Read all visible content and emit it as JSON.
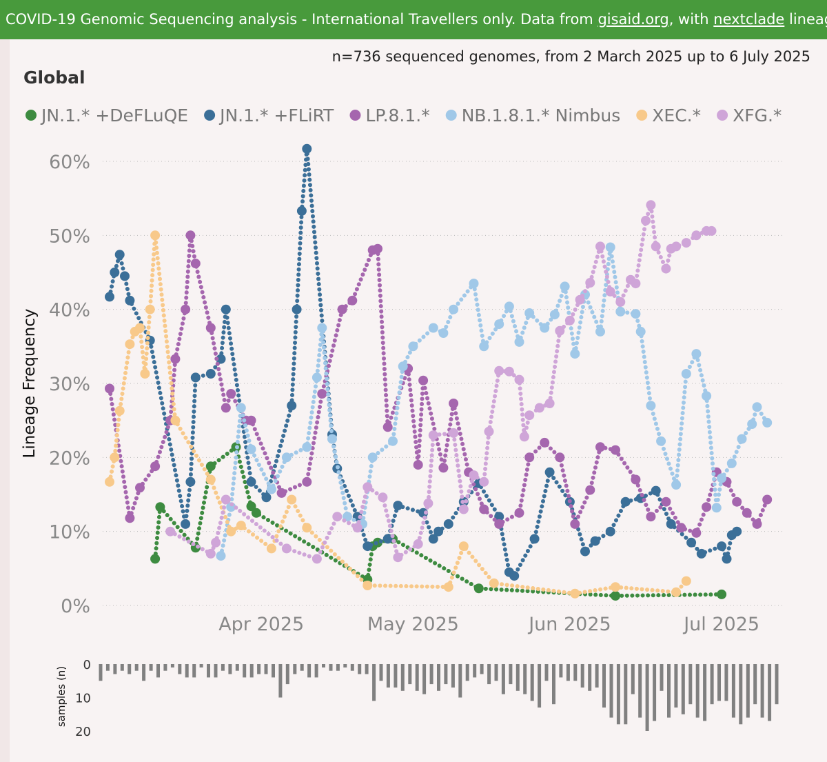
{
  "banner": {
    "prefix": "COVID-19 Genomic Sequencing analysis - International Travellers only. Data from ",
    "link1": "gisaid.org",
    "middle": ", with ",
    "link2": "nextclade",
    "suffix": " lineag"
  },
  "subtitle": "n=736 sequenced genomes, from 2 March 2025 up to 6 July 2025",
  "panel_title": "Global",
  "chart_data": {
    "type": "line",
    "ylabel": "Lineage Frequency",
    "ylim": [
      0,
      60
    ],
    "y_ticks": [
      "0%",
      "10%",
      "20%",
      "30%",
      "40%",
      "50%",
      "60%"
    ],
    "x_range": [
      "2025-03-02",
      "2025-07-06"
    ],
    "x_ticks": [
      {
        "date": "2025-04-01",
        "label": "Apr 2025"
      },
      {
        "date": "2025-05-01",
        "label": "May 2025"
      },
      {
        "date": "2025-06-01",
        "label": "Jun 2025"
      },
      {
        "date": "2025-07-01",
        "label": "Jul 2025"
      }
    ],
    "grid": "horizontal dotted",
    "legend_position": "top",
    "series": [
      {
        "name": "JN.1.* +DeFLuQE",
        "color": "#3d8b40",
        "points": [
          [
            "2025-03-11",
            6.3
          ],
          [
            "2025-03-12",
            13.3
          ],
          [
            "2025-03-19",
            7.8
          ],
          [
            "2025-03-22",
            18.8
          ],
          [
            "2025-03-27",
            21.4
          ],
          [
            "2025-03-30",
            13.4
          ],
          [
            "2025-03-31",
            12.5
          ],
          [
            "2025-04-22",
            3.5
          ],
          [
            "2025-04-23",
            8.0
          ],
          [
            "2025-04-24",
            8.5
          ],
          [
            "2025-04-27",
            9.0
          ],
          [
            "2025-05-14",
            2.3
          ],
          [
            "2025-06-10",
            1.3
          ],
          [
            "2025-07-01",
            1.5
          ]
        ]
      },
      {
        "name": "JN.1.* +FLiRT",
        "color": "#3b6f98",
        "points": [
          [
            "2025-03-02",
            41.7
          ],
          [
            "2025-03-03",
            45.0
          ],
          [
            "2025-03-04",
            47.4
          ],
          [
            "2025-03-05",
            44.5
          ],
          [
            "2025-03-06",
            41.2
          ],
          [
            "2025-03-10",
            35.8
          ],
          [
            "2025-03-17",
            11.0
          ],
          [
            "2025-03-18",
            16.7
          ],
          [
            "2025-03-19",
            30.8
          ],
          [
            "2025-03-22",
            31.3
          ],
          [
            "2025-03-24",
            33.3
          ],
          [
            "2025-03-25",
            40.0
          ],
          [
            "2025-03-30",
            16.7
          ],
          [
            "2025-04-02",
            14.6
          ],
          [
            "2025-04-07",
            27.0
          ],
          [
            "2025-04-08",
            40.0
          ],
          [
            "2025-04-09",
            53.3
          ],
          [
            "2025-04-10",
            61.7
          ],
          [
            "2025-04-15",
            23.1
          ],
          [
            "2025-04-16",
            18.5
          ],
          [
            "2025-04-20",
            12.0
          ],
          [
            "2025-04-22",
            8.0
          ],
          [
            "2025-04-26",
            9.0
          ],
          [
            "2025-04-28",
            13.5
          ],
          [
            "2025-05-03",
            12.5
          ],
          [
            "2025-05-05",
            9.0
          ],
          [
            "2025-05-06",
            10.0
          ],
          [
            "2025-05-08",
            11.0
          ],
          [
            "2025-05-11",
            14.0
          ],
          [
            "2025-05-14",
            16.5
          ],
          [
            "2025-05-18",
            12.0
          ],
          [
            "2025-05-20",
            4.5
          ],
          [
            "2025-05-21",
            4.0
          ],
          [
            "2025-05-25",
            9.0
          ],
          [
            "2025-05-28",
            18.0
          ],
          [
            "2025-06-01",
            14.0
          ],
          [
            "2025-06-04",
            7.3
          ],
          [
            "2025-06-06",
            8.7
          ],
          [
            "2025-06-09",
            10.0
          ],
          [
            "2025-06-12",
            14.0
          ],
          [
            "2025-06-15",
            14.5
          ],
          [
            "2025-06-18",
            15.5
          ],
          [
            "2025-06-21",
            11.0
          ],
          [
            "2025-06-25",
            8.5
          ],
          [
            "2025-06-27",
            7.0
          ],
          [
            "2025-07-01",
            8.0
          ],
          [
            "2025-07-02",
            6.3
          ],
          [
            "2025-07-03",
            9.5
          ],
          [
            "2025-07-04",
            10.0
          ]
        ]
      },
      {
        "name": "LP.8.1.*",
        "color": "#a566ae",
        "points": [
          [
            "2025-03-02",
            29.3
          ],
          [
            "2025-03-06",
            11.8
          ],
          [
            "2025-03-08",
            15.9
          ],
          [
            "2025-03-11",
            18.8
          ],
          [
            "2025-03-14",
            25.0
          ],
          [
            "2025-03-15",
            33.3
          ],
          [
            "2025-03-17",
            40.0
          ],
          [
            "2025-03-18",
            50.0
          ],
          [
            "2025-03-19",
            46.2
          ],
          [
            "2025-03-22",
            37.5
          ],
          [
            "2025-03-25",
            26.7
          ],
          [
            "2025-03-26",
            28.6
          ],
          [
            "2025-03-29",
            25.0
          ],
          [
            "2025-03-30",
            25.0
          ],
          [
            "2025-04-05",
            15.2
          ],
          [
            "2025-04-10",
            16.7
          ],
          [
            "2025-04-13",
            28.6
          ],
          [
            "2025-04-17",
            40.0
          ],
          [
            "2025-04-19",
            41.2
          ],
          [
            "2025-04-23",
            48.0
          ],
          [
            "2025-04-24",
            48.2
          ],
          [
            "2025-04-26",
            24.1
          ],
          [
            "2025-04-30",
            32.0
          ],
          [
            "2025-05-02",
            19.0
          ],
          [
            "2025-05-03",
            30.4
          ],
          [
            "2025-05-07",
            18.6
          ],
          [
            "2025-05-09",
            27.3
          ],
          [
            "2025-05-12",
            18.0
          ],
          [
            "2025-05-15",
            13.0
          ],
          [
            "2025-05-18",
            11.0
          ],
          [
            "2025-05-22",
            12.5
          ],
          [
            "2025-05-24",
            20.0
          ],
          [
            "2025-05-27",
            22.0
          ],
          [
            "2025-05-30",
            20.0
          ],
          [
            "2025-06-02",
            11.0
          ],
          [
            "2025-06-05",
            15.6
          ],
          [
            "2025-06-07",
            21.4
          ],
          [
            "2025-06-10",
            21.0
          ],
          [
            "2025-06-14",
            17.0
          ],
          [
            "2025-06-17",
            12.0
          ],
          [
            "2025-06-20",
            14.0
          ],
          [
            "2025-06-23",
            10.5
          ],
          [
            "2025-06-26",
            9.8
          ],
          [
            "2025-06-28",
            13.3
          ],
          [
            "2025-06-30",
            18.0
          ],
          [
            "2025-07-02",
            16.7
          ],
          [
            "2025-07-04",
            14.0
          ],
          [
            "2025-07-06",
            12.5
          ],
          [
            "2025-07-08",
            11.0
          ],
          [
            "2025-07-10",
            14.3
          ]
        ]
      },
      {
        "name": "NB.1.8.1.* Nimbus",
        "color": "#a0c8e8",
        "points": [
          [
            "2025-03-24",
            6.7
          ],
          [
            "2025-03-26",
            13.3
          ],
          [
            "2025-03-28",
            26.7
          ],
          [
            "2025-03-30",
            21.1
          ],
          [
            "2025-04-03",
            15.7
          ],
          [
            "2025-04-06",
            20.0
          ],
          [
            "2025-04-10",
            21.4
          ],
          [
            "2025-04-12",
            30.8
          ],
          [
            "2025-04-13",
            37.5
          ],
          [
            "2025-04-15",
            22.5
          ],
          [
            "2025-04-18",
            12.0
          ],
          [
            "2025-04-21",
            11.0
          ],
          [
            "2025-04-23",
            20.0
          ],
          [
            "2025-04-27",
            22.2
          ],
          [
            "2025-04-29",
            32.3
          ],
          [
            "2025-05-01",
            35.0
          ],
          [
            "2025-05-05",
            37.5
          ],
          [
            "2025-05-07",
            36.8
          ],
          [
            "2025-05-09",
            40.0
          ],
          [
            "2025-05-13",
            43.5
          ],
          [
            "2025-05-15",
            35.0
          ],
          [
            "2025-05-18",
            38.0
          ],
          [
            "2025-05-20",
            40.4
          ],
          [
            "2025-05-22",
            35.6
          ],
          [
            "2025-05-24",
            39.5
          ],
          [
            "2025-05-27",
            37.5
          ],
          [
            "2025-05-29",
            39.3
          ],
          [
            "2025-05-31",
            43.1
          ],
          [
            "2025-06-02",
            34.0
          ],
          [
            "2025-06-04",
            42.0
          ],
          [
            "2025-06-07",
            37.0
          ],
          [
            "2025-06-09",
            48.4
          ],
          [
            "2025-06-11",
            39.7
          ],
          [
            "2025-06-14",
            39.4
          ],
          [
            "2025-06-15",
            37.0
          ],
          [
            "2025-06-17",
            27.0
          ],
          [
            "2025-06-19",
            22.2
          ],
          [
            "2025-06-22",
            16.3
          ],
          [
            "2025-06-24",
            31.3
          ],
          [
            "2025-06-26",
            34.0
          ],
          [
            "2025-06-28",
            28.3
          ],
          [
            "2025-06-30",
            13.2
          ],
          [
            "2025-07-01",
            17.2
          ],
          [
            "2025-07-03",
            19.2
          ],
          [
            "2025-07-05",
            22.5
          ],
          [
            "2025-07-07",
            24.5
          ],
          [
            "2025-07-08",
            26.8
          ],
          [
            "2025-07-10",
            24.7
          ]
        ]
      },
      {
        "name": "XEC.*",
        "color": "#f8c98a",
        "points": [
          [
            "2025-03-02",
            16.7
          ],
          [
            "2025-03-03",
            20.0
          ],
          [
            "2025-03-04",
            26.3
          ],
          [
            "2025-03-06",
            35.3
          ],
          [
            "2025-03-07",
            37.0
          ],
          [
            "2025-03-08",
            37.5
          ],
          [
            "2025-03-09",
            31.3
          ],
          [
            "2025-03-10",
            40.0
          ],
          [
            "2025-03-11",
            50.0
          ],
          [
            "2025-03-15",
            25.0
          ],
          [
            "2025-03-22",
            17.0
          ],
          [
            "2025-03-26",
            10.0
          ],
          [
            "2025-03-28",
            10.8
          ],
          [
            "2025-04-03",
            7.7
          ],
          [
            "2025-04-07",
            14.3
          ],
          [
            "2025-04-10",
            10.5
          ],
          [
            "2025-04-22",
            2.7
          ],
          [
            "2025-05-08",
            2.5
          ],
          [
            "2025-05-11",
            8.0
          ],
          [
            "2025-05-17",
            3.0
          ],
          [
            "2025-06-02",
            1.6
          ],
          [
            "2025-06-10",
            2.5
          ],
          [
            "2025-06-22",
            1.8
          ],
          [
            "2025-06-24",
            3.3
          ]
        ]
      },
      {
        "name": "XFG.*",
        "color": "#cfa5d8",
        "points": [
          [
            "2025-03-14",
            10.0
          ],
          [
            "2025-03-22",
            7.0
          ],
          [
            "2025-03-23",
            8.5
          ],
          [
            "2025-03-25",
            14.3
          ],
          [
            "2025-04-06",
            7.7
          ],
          [
            "2025-04-12",
            6.3
          ],
          [
            "2025-04-16",
            12.0
          ],
          [
            "2025-04-20",
            10.5
          ],
          [
            "2025-04-22",
            16.0
          ],
          [
            "2025-04-25",
            14.6
          ],
          [
            "2025-04-28",
            6.5
          ],
          [
            "2025-05-02",
            8.3
          ],
          [
            "2025-05-04",
            13.8
          ],
          [
            "2025-05-05",
            23.0
          ],
          [
            "2025-05-09",
            23.3
          ],
          [
            "2025-05-11",
            13.0
          ],
          [
            "2025-05-13",
            17.6
          ],
          [
            "2025-05-15",
            16.7
          ],
          [
            "2025-05-16",
            23.5
          ],
          [
            "2025-05-18",
            31.7
          ],
          [
            "2025-05-20",
            31.6
          ],
          [
            "2025-05-22",
            30.5
          ],
          [
            "2025-05-23",
            22.8
          ],
          [
            "2025-05-24",
            25.7
          ],
          [
            "2025-05-26",
            26.7
          ],
          [
            "2025-05-28",
            27.3
          ],
          [
            "2025-05-30",
            37.1
          ],
          [
            "2025-06-01",
            38.5
          ],
          [
            "2025-06-03",
            41.3
          ],
          [
            "2025-06-05",
            43.6
          ],
          [
            "2025-06-07",
            48.5
          ],
          [
            "2025-06-09",
            42.4
          ],
          [
            "2025-06-11",
            41.0
          ],
          [
            "2025-06-13",
            44.0
          ],
          [
            "2025-06-14",
            43.5
          ],
          [
            "2025-06-16",
            52.0
          ],
          [
            "2025-06-17",
            54.1
          ],
          [
            "2025-06-18",
            48.5
          ],
          [
            "2025-06-20",
            45.5
          ],
          [
            "2025-06-21",
            48.2
          ],
          [
            "2025-06-22",
            48.5
          ],
          [
            "2025-06-24",
            49.0
          ],
          [
            "2025-06-26",
            50.0
          ],
          [
            "2025-06-28",
            50.6
          ],
          [
            "2025-06-29",
            50.6
          ]
        ]
      }
    ],
    "samples_panel": {
      "ylabel": "samples (n)",
      "y_ticks": [
        "0",
        "10",
        "20"
      ],
      "ylim": [
        0,
        20
      ],
      "bars": [
        5,
        2,
        3,
        2,
        3,
        2,
        5,
        2,
        4,
        2,
        1,
        3,
        4,
        4,
        1,
        4,
        4,
        2,
        3,
        2,
        4,
        4,
        3,
        3,
        4,
        10,
        6,
        3,
        2,
        4,
        4,
        1,
        2,
        2,
        1,
        2,
        3,
        3,
        11,
        5,
        7,
        7,
        8,
        6,
        8,
        9,
        6,
        8,
        6,
        7,
        10,
        5,
        4,
        3,
        6,
        5,
        9,
        6,
        8,
        9,
        11,
        13,
        5,
        12,
        4,
        5,
        5,
        7,
        8,
        7,
        13,
        16,
        18,
        18,
        9,
        16,
        20,
        17,
        8,
        16,
        13,
        15,
        12,
        16,
        17,
        12,
        11,
        11,
        16,
        18,
        16,
        12,
        16,
        17,
        12
      ]
    }
  }
}
